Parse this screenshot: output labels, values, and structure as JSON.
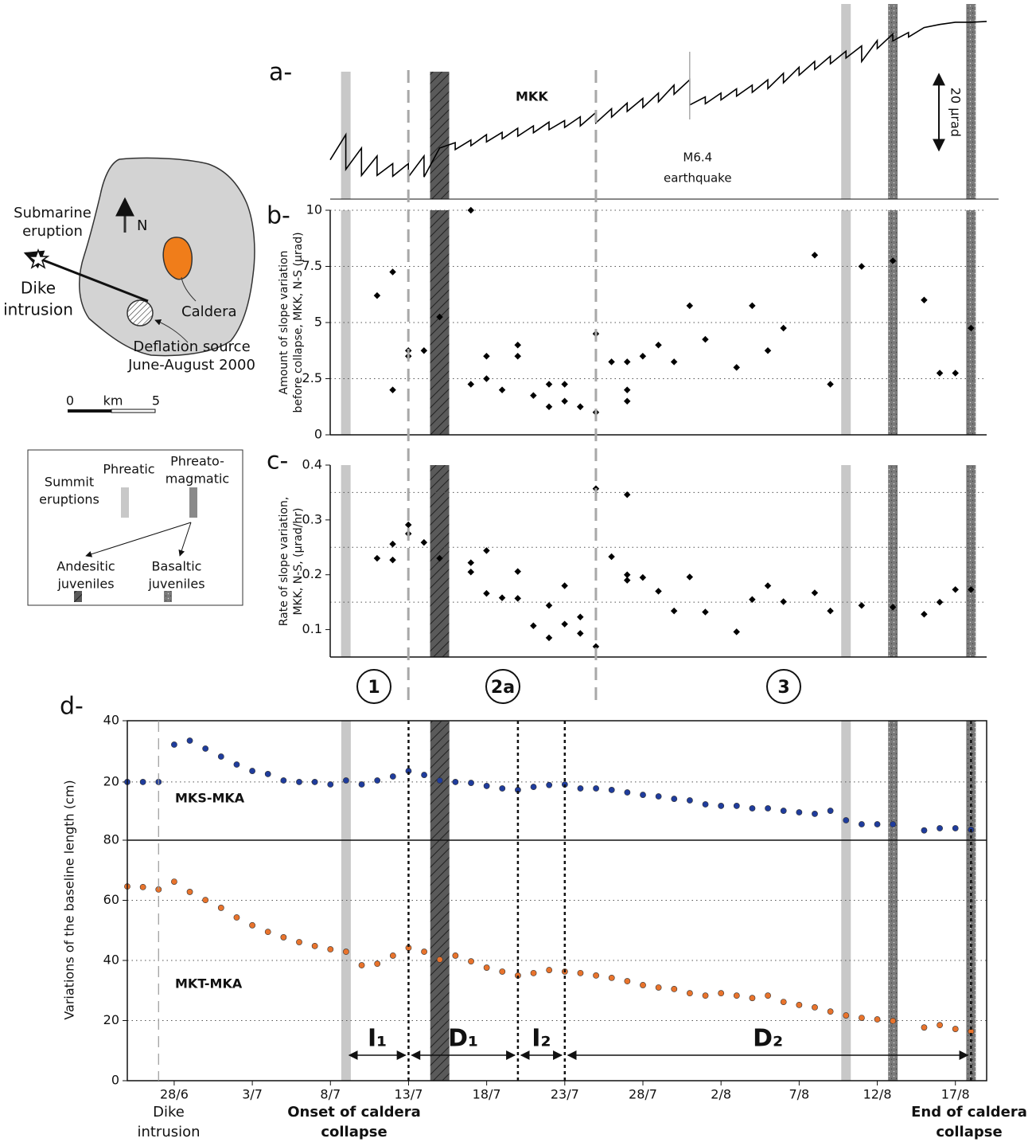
{
  "chart_data": [
    {
      "type": "line",
      "panel": "a-",
      "title": "MKK",
      "color": "#000000",
      "x": [
        "8/7",
        "9/7",
        "9/7",
        "10/7",
        "10/7",
        "11/7",
        "11/7",
        "12/7",
        "12/7",
        "13/7",
        "13/7",
        "14/7",
        "14/7",
        "15/7",
        "16/7",
        "16/7",
        "17/7",
        "17/7",
        "18/7",
        "18/7",
        "19/7",
        "19/7",
        "20/7",
        "20/7",
        "21/7",
        "21/7",
        "22/7",
        "22/7",
        "23/7",
        "23/7",
        "24/7",
        "24/7",
        "25/7",
        "25/7",
        "26/7",
        "26/7",
        "27/7",
        "27/7",
        "28/7",
        "28/7",
        "29/7",
        "29/7",
        "30/7",
        "30/7",
        "31/7",
        "31/7",
        "1/8",
        "1/8",
        "2/8",
        "2/8",
        "3/8",
        "3/8",
        "4/8",
        "4/8",
        "5/8",
        "5/8",
        "6/8",
        "6/8",
        "7/8",
        "7/8",
        "8/8",
        "8/8",
        "9/8",
        "9/8",
        "10/8",
        "10/8",
        "11/8",
        "11/8",
        "12/8",
        "12/8",
        "13/8",
        "13/8",
        "14/8",
        "14/8",
        "15/8",
        "16/8",
        "17/8",
        "18/8",
        "19/8"
      ],
      "values": [
        10.3,
        16.9,
        7.8,
        13.4,
        6.2,
        11.3,
        6.2,
        9.3,
        6.0,
        9.3,
        5.8,
        11.3,
        5.8,
        13.4,
        14.8,
        13.0,
        15.5,
        14.0,
        16.9,
        15.0,
        17.5,
        15.8,
        18.6,
        16.5,
        19.2,
        17.4,
        20.2,
        18.2,
        20.6,
        18.8,
        21.6,
        19.2,
        22.7,
        20.0,
        23.7,
        21.5,
        25.2,
        23.0,
        26.4,
        24.0,
        27.8,
        25.5,
        29.9,
        27.5,
        31.3,
        24.7,
        26.8,
        25.0,
        27.8,
        26.0,
        28.9,
        27.0,
        29.9,
        28.0,
        31.3,
        29.0,
        33.0,
        30.5,
        34.6,
        32.5,
        36.1,
        34.0,
        37.5,
        35.5,
        38.8,
        37.0,
        40.2,
        36.1,
        41.6,
        39.5,
        43.3,
        41.5,
        43.7,
        42.5,
        45.0,
        45.8,
        46.4,
        46.4,
        46.6
      ],
      "xlim": [
        "8/7",
        "19/8"
      ],
      "ylim": [
        0,
        47
      ],
      "scale_bar": {
        "value": 20,
        "label": "20 µrad"
      },
      "annotation": {
        "date": "31/7",
        "lines": [
          "M6.4",
          "earthquake"
        ]
      }
    },
    {
      "type": "scatter",
      "panel": "b-",
      "color": "#000000",
      "ylabel": [
        "Amount of slope variation",
        "before collapse, MKK, N-S (µrad)"
      ],
      "x": [
        "11/7",
        "12/7",
        "12/7",
        "13/7",
        "13/7",
        "14/7",
        "15/7",
        "17/7",
        "17/7",
        "18/7",
        "18/7",
        "19/7",
        "20/7",
        "20/7",
        "21/7",
        "22/7",
        "22/7",
        "23/7",
        "23/7",
        "24/7",
        "24/7",
        "25/7",
        "25/7",
        "26/7",
        "27/7",
        "27/7",
        "27/7",
        "28/7",
        "29/7",
        "30/7",
        "31/7",
        "1/8",
        "3/8",
        "4/8",
        "5/8",
        "6/8",
        "8/8",
        "9/8",
        "11/8",
        "13/8",
        "15/8",
        "16/8",
        "17/8",
        "18/8"
      ],
      "values": [
        6.2,
        7.25,
        2,
        3.5,
        3.75,
        3.75,
        5.25,
        10,
        2.25,
        3.5,
        2.5,
        2,
        3.5,
        4,
        1.75,
        2.25,
        1.25,
        1.5,
        2.25,
        1.25,
        1.25,
        4.5,
        1,
        3.25,
        2,
        1.5,
        3.25,
        3.5,
        4,
        3.25,
        5.75,
        4.25,
        3,
        5.75,
        3.75,
        4.75,
        8,
        2.25,
        7.5,
        7.75,
        6,
        2.75,
        2.75,
        4.75
      ],
      "xlim": [
        "8/7",
        "19/8"
      ],
      "ylim": [
        0,
        10
      ],
      "yticks": [
        0,
        2.5,
        5,
        7.5,
        10
      ],
      "grid": true
    },
    {
      "type": "scatter",
      "panel": "c-",
      "color": "#000000",
      "ylabel": [
        "Rate of slope variation,",
        "MKK, N-S, (µrad/hr)"
      ],
      "x": [
        "11/7",
        "12/7",
        "12/7",
        "13/7",
        "13/7",
        "14/7",
        "15/7",
        "17/7",
        "17/7",
        "18/7",
        "18/7",
        "19/7",
        "20/7",
        "20/7",
        "21/7",
        "22/7",
        "22/7",
        "23/7",
        "23/7",
        "24/7",
        "24/7",
        "25/7",
        "25/7",
        "26/7",
        "27/7",
        "27/7",
        "27/7",
        "28/7",
        "29/7",
        "30/7",
        "31/7",
        "1/8",
        "3/8",
        "4/8",
        "5/8",
        "6/8",
        "8/8",
        "9/8",
        "11/8",
        "13/8",
        "15/8",
        "16/8",
        "17/8",
        "18/8"
      ],
      "values": [
        0.23,
        0.256,
        0.227,
        0.275,
        0.291,
        0.259,
        0.23,
        0.222,
        0.205,
        0.244,
        0.166,
        0.158,
        0.157,
        0.206,
        0.107,
        0.144,
        0.085,
        0.11,
        0.18,
        0.123,
        0.093,
        0.357,
        0.069,
        0.233,
        0.2,
        0.19,
        0.346,
        0.195,
        0.17,
        0.134,
        0.196,
        0.132,
        0.096,
        0.155,
        0.18,
        0.151,
        0.167,
        0.134,
        0.144,
        0.141,
        0.128,
        0.15,
        0.173,
        0.173
      ],
      "xlim": [
        "8/7",
        "19/8"
      ],
      "ylim": [
        0.05,
        0.4
      ],
      "yticks": [
        0.1,
        0.2,
        0.3,
        0.4
      ],
      "gridlines": [
        0.15,
        0.25,
        0.35
      ]
    },
    {
      "type": "scatter",
      "panel": "d-",
      "x": [
        "25/6",
        "26/6",
        "27/6",
        "28/6",
        "29/6",
        "30/6",
        "1/7",
        "2/7",
        "3/7",
        "4/7",
        "5/7",
        "6/7",
        "7/7",
        "8/7",
        "9/7",
        "10/7",
        "11/7",
        "12/7",
        "13/7",
        "14/7",
        "15/7",
        "16/7",
        "17/7",
        "18/7",
        "19/7",
        "20/7",
        "21/7",
        "22/7",
        "23/7",
        "24/7",
        "25/7",
        "26/7",
        "27/7",
        "28/7",
        "29/7",
        "30/7",
        "31/7",
        "1/8",
        "2/8",
        "3/8",
        "4/8",
        "5/8",
        "6/8",
        "7/8",
        "8/8",
        "9/8",
        "10/8",
        "11/8",
        "12/8",
        "13/8",
        "14/8",
        "15/8",
        "16/8",
        "17/8",
        "18/8"
      ],
      "series": [
        {
          "name": "MKS-MKA",
          "color": "#1f3c9c",
          "values": [
            20,
            20,
            20,
            32.2,
            33.5,
            30.9,
            28.3,
            25.7,
            23.6,
            22.6,
            20.5,
            20,
            20,
            19.2,
            20.5,
            19.2,
            20.5,
            21.8,
            23.6,
            22.3,
            20.5,
            20,
            19.7,
            18.7,
            17.9,
            17.4,
            18.4,
            19,
            19.2,
            17.9,
            17.9,
            17.4,
            16.6,
            15.8,
            15.3,
            14.5,
            14,
            12.7,
            12.2,
            12.2,
            11.4,
            11.4,
            10.6,
            10.1,
            9.6,
            10.6,
            7.5,
            6.2,
            6.2,
            6.2,
            null,
            4.2,
            4.9,
            4.9,
            4.4
          ]
        }
      ],
      "xlim": [
        "25/6",
        "19/8"
      ],
      "ylim": [
        1,
        40
      ],
      "yticks": [
        20,
        40
      ],
      "grid": true
    },
    {
      "type": "scatter",
      "ylabel": "Variations of the baseline length (cm)",
      "x": [
        "25/6",
        "26/6",
        "27/6",
        "28/6",
        "29/6",
        "30/6",
        "1/7",
        "2/7",
        "3/7",
        "4/7",
        "5/7",
        "6/7",
        "7/7",
        "8/7",
        "9/7",
        "10/7",
        "11/7",
        "12/7",
        "13/7",
        "14/7",
        "15/7",
        "16/7",
        "17/7",
        "18/7",
        "19/7",
        "20/7",
        "21/7",
        "22/7",
        "23/7",
        "24/7",
        "25/7",
        "26/7",
        "27/7",
        "28/7",
        "29/7",
        "30/7",
        "31/7",
        "1/8",
        "2/8",
        "3/8",
        "4/8",
        "5/8",
        "6/8",
        "7/8",
        "8/8",
        "9/8",
        "10/8",
        "11/8",
        "12/8",
        "13/8",
        "14/8",
        "15/8",
        "16/8",
        "17/8",
        "18/8"
      ],
      "series": [
        {
          "name": "MKT-MKA",
          "color": "#e8732c",
          "values": [
            64.6,
            64.4,
            63.6,
            66.2,
            62.8,
            60.1,
            57.5,
            54.3,
            51.7,
            49.5,
            47.7,
            46.1,
            44.8,
            43.7,
            42.9,
            38.4,
            38.9,
            41.6,
            44.2,
            42.9,
            40.3,
            41.6,
            39.7,
            37.6,
            36.3,
            35,
            35.8,
            36.8,
            36.3,
            35.8,
            35,
            34.2,
            33.1,
            31.8,
            31,
            30.5,
            29.1,
            28.3,
            29.1,
            28.3,
            27.5,
            28.3,
            26.2,
            25.2,
            24.4,
            23,
            21.7,
            20.9,
            20.4,
            19.9,
            null,
            17.7,
            18.5,
            17.2,
            16.4
          ]
        }
      ],
      "xlim": [
        "25/6",
        "19/8"
      ],
      "ylim": [
        0,
        80
      ],
      "yticks": [
        0,
        20,
        40,
        60,
        80
      ],
      "xticks": [
        "28/6",
        "3/7",
        "8/7",
        "13/7",
        "18/7",
        "23/7",
        "28/7",
        "2/8",
        "7/8",
        "12/8",
        "17/8"
      ],
      "grid": true
    }
  ],
  "events": {
    "colors": {
      "phreatic": "#c8c8c8",
      "andesitic": "#5a5a5a",
      "basaltic": "#7a7a7a"
    },
    "bands": {
      "phreatic": [
        "9/7",
        "10/8"
      ],
      "andesitic": [
        "15/7"
      ],
      "basaltic": [
        "13/8",
        "18/8"
      ]
    },
    "phase_boundaries": [
      "13/7",
      "25/7"
    ],
    "phases": [
      "1",
      "2a",
      "3"
    ],
    "dike_date": "27/6",
    "intervals": [
      {
        "label": "I₁",
        "start": "9/7",
        "end": "13/7"
      },
      {
        "label": "D₁",
        "start": "13/7",
        "end": "20/7"
      },
      {
        "label": "I₂",
        "start": "20/7",
        "end": "23/7"
      },
      {
        "label": "D₂",
        "start": "23/7",
        "end": "18/8"
      }
    ],
    "notes": {
      "dike": [
        "Dike",
        "intrusion"
      ],
      "onset": [
        "Onset of caldera",
        "collapse"
      ],
      "end": [
        "End of caldera",
        "collapse"
      ]
    }
  },
  "map": {
    "stations": [
      "MKS",
      "MKK",
      "MKA",
      "MKT"
    ],
    "north": "N",
    "submarine": [
      "Submarine",
      "eruption"
    ],
    "dike": [
      "Dike",
      "intrusion"
    ],
    "caldera": "Caldera",
    "deflation": [
      "Deflation source",
      "June-August 2000"
    ],
    "scale": {
      "start": "0",
      "unit": "km",
      "end": "5"
    }
  },
  "legend": {
    "summit": [
      "Summit",
      "eruptions"
    ],
    "phreatic": "Phreatic",
    "phreatomagmatic": [
      "Phreato-",
      "magmatic"
    ],
    "andesitic": [
      "Andesitic",
      "juveniles"
    ],
    "basaltic": [
      "Basaltic",
      "juveniles"
    ]
  }
}
